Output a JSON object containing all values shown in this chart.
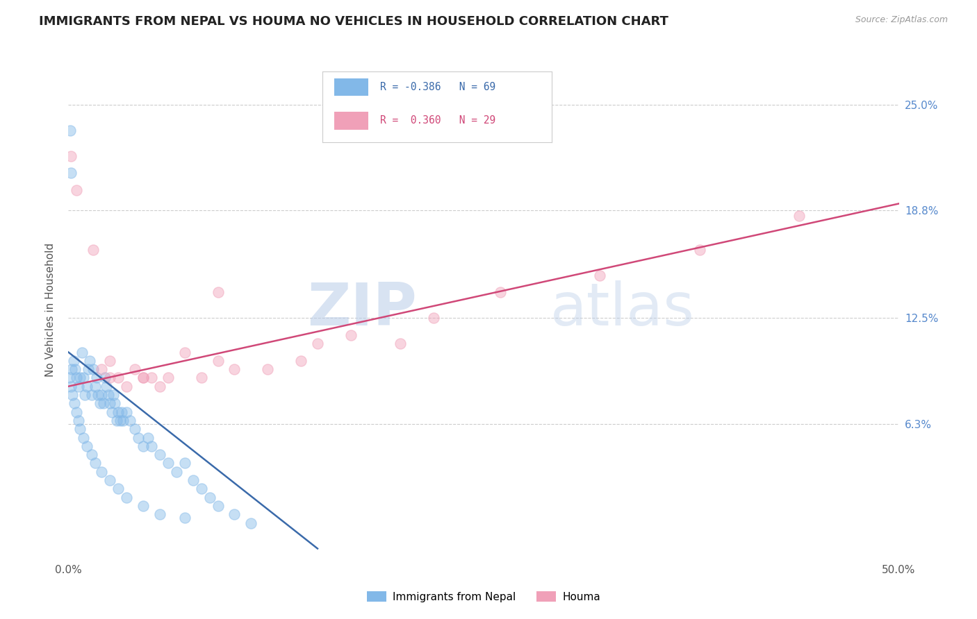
{
  "title": "IMMIGRANTS FROM NEPAL VS HOUMA NO VEHICLES IN HOUSEHOLD CORRELATION CHART",
  "source": "Source: ZipAtlas.com",
  "ylabel": "No Vehicles in Household",
  "ytick_values": [
    6.3,
    12.5,
    18.8,
    25.0
  ],
  "ytick_labels": [
    "6.3%",
    "12.5%",
    "18.8%",
    "25.0%"
  ],
  "xlim": [
    0.0,
    50.0
  ],
  "ylim": [
    -1.5,
    27.5
  ],
  "legend1_r": "R = -0.386",
  "legend1_n": "N = 69",
  "legend2_r": "R =  0.360",
  "legend2_n": "N = 29",
  "legend_blue_label": "Immigrants from Nepal",
  "legend_pink_label": "Houma",
  "blue_color": "#82b8e8",
  "pink_color": "#f0a0b8",
  "line_blue_color": "#3a6aaa",
  "line_pink_color": "#d04878",
  "blue_scatter_x": [
    0.1,
    0.15,
    0.2,
    0.3,
    0.4,
    0.5,
    0.6,
    0.7,
    0.8,
    0.9,
    1.0,
    1.1,
    1.2,
    1.3,
    1.4,
    1.5,
    1.6,
    1.7,
    1.8,
    1.9,
    2.0,
    2.1,
    2.2,
    2.3,
    2.4,
    2.5,
    2.6,
    2.7,
    2.8,
    2.9,
    3.0,
    3.1,
    3.2,
    3.3,
    3.5,
    3.7,
    4.0,
    4.2,
    4.5,
    4.8,
    5.0,
    5.5,
    6.0,
    6.5,
    7.0,
    7.5,
    8.0,
    8.5,
    9.0,
    10.0,
    0.05,
    0.15,
    0.25,
    0.35,
    0.5,
    0.6,
    0.7,
    0.9,
    1.1,
    1.4,
    1.6,
    2.0,
    2.5,
    3.0,
    3.5,
    4.5,
    5.5,
    7.0,
    11.0
  ],
  "blue_scatter_y": [
    23.5,
    21.0,
    9.5,
    10.0,
    9.5,
    9.0,
    8.5,
    9.0,
    10.5,
    9.0,
    8.0,
    8.5,
    9.5,
    10.0,
    8.0,
    9.5,
    8.5,
    9.0,
    8.0,
    7.5,
    8.0,
    7.5,
    9.0,
    8.5,
    8.0,
    7.5,
    7.0,
    8.0,
    7.5,
    6.5,
    7.0,
    6.5,
    7.0,
    6.5,
    7.0,
    6.5,
    6.0,
    5.5,
    5.0,
    5.5,
    5.0,
    4.5,
    4.0,
    3.5,
    4.0,
    3.0,
    2.5,
    2.0,
    1.5,
    1.0,
    9.0,
    8.5,
    8.0,
    7.5,
    7.0,
    6.5,
    6.0,
    5.5,
    5.0,
    4.5,
    4.0,
    3.5,
    3.0,
    2.5,
    2.0,
    1.5,
    1.0,
    0.8,
    0.5
  ],
  "pink_scatter_x": [
    0.15,
    0.5,
    1.5,
    2.0,
    2.5,
    3.0,
    3.5,
    4.0,
    4.5,
    5.0,
    5.5,
    6.0,
    7.0,
    8.0,
    9.0,
    10.0,
    12.0,
    14.0,
    15.0,
    17.0,
    20.0,
    22.0,
    26.0,
    32.0,
    38.0,
    44.0,
    2.5,
    4.5,
    9.0
  ],
  "pink_scatter_y": [
    22.0,
    20.0,
    16.5,
    9.5,
    9.0,
    9.0,
    8.5,
    9.5,
    9.0,
    9.0,
    8.5,
    9.0,
    10.5,
    9.0,
    10.0,
    9.5,
    9.5,
    10.0,
    11.0,
    11.5,
    11.0,
    12.5,
    14.0,
    15.0,
    16.5,
    18.5,
    10.0,
    9.0,
    14.0
  ],
  "blue_line_x": [
    0.0,
    15.0
  ],
  "blue_line_y": [
    10.5,
    -1.0
  ],
  "pink_line_x": [
    0.0,
    50.0
  ],
  "pink_line_y": [
    8.5,
    19.2
  ]
}
